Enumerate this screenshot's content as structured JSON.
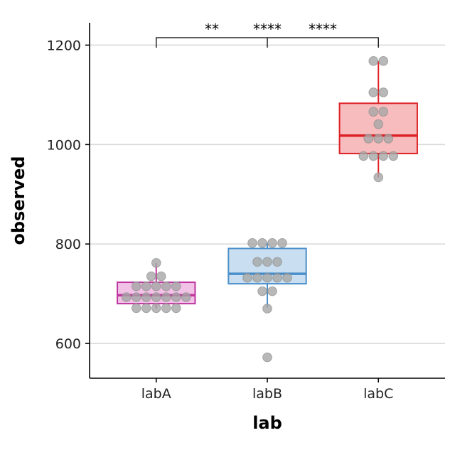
{
  "chart_data": {
    "type": "box",
    "xlabel": "lab",
    "ylabel": "observed",
    "categories": [
      "labA",
      "labB",
      "labC"
    ],
    "ylim": [
      530,
      1245
    ],
    "yticks": [
      600,
      800,
      1000,
      1200
    ],
    "grid": "horizontal major",
    "boxes": [
      {
        "category": "labA",
        "q1": 680,
        "median": 697,
        "q3": 723,
        "whisker_low": 670,
        "whisker_high": 762,
        "fill": "#f1c2e6",
        "stroke": "#c0359e"
      },
      {
        "category": "labB",
        "q1": 720,
        "median": 740,
        "q3": 791,
        "whisker_low": 672,
        "whisker_high": 802,
        "fill": "#c9dff1",
        "stroke": "#4a8ec9"
      },
      {
        "category": "labC",
        "q1": 982,
        "median": 1018,
        "q3": 1083,
        "whisker_low": 934,
        "whisker_high": 1168,
        "fill": "#f7bcbd",
        "stroke": "#dd2126"
      }
    ],
    "points": [
      {
        "category": "labA",
        "values": [
          762,
          735,
          735,
          715,
          715,
          715,
          715,
          715,
          693,
          693,
          693,
          693,
          693,
          693,
          693,
          671,
          671,
          671,
          671,
          671
        ]
      },
      {
        "category": "labB",
        "values": [
          802,
          802,
          802,
          802,
          764,
          764,
          764,
          732,
          732,
          732,
          732,
          732,
          705,
          705,
          670,
          572
        ]
      },
      {
        "category": "labC",
        "values": [
          1168,
          1168,
          1105,
          1105,
          1066,
          1066,
          1041,
          1012,
          1012,
          1012,
          977,
          977,
          977,
          977,
          934
        ]
      }
    ],
    "point_color": "#a6a6a6",
    "comparisons": [
      {
        "label": "**"
      },
      {
        "label": "****"
      },
      {
        "label": "****"
      }
    ]
  }
}
